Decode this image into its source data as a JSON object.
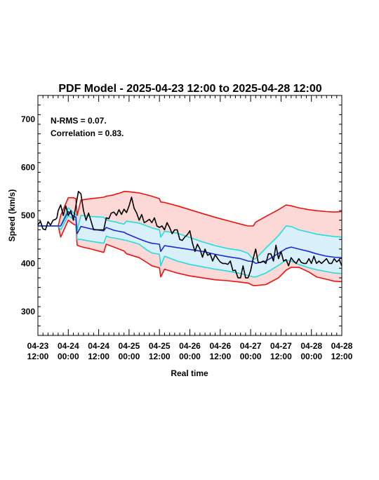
{
  "chart_data": {
    "type": "area",
    "title": "PDF Model - 2025-04-23 12:00 to 2025-04-28 12:00",
    "xlabel": "Real time",
    "ylabel": "Speed (km/s)",
    "ylim": [
      250,
      750
    ],
    "xlim_hours": [
      0,
      120
    ],
    "x_ticks": [
      {
        "h": 0,
        "date": "04-23",
        "time": "12:00"
      },
      {
        "h": 12,
        "date": "04-24",
        "time": "00:00"
      },
      {
        "h": 24,
        "date": "04-24",
        "time": "12:00"
      },
      {
        "h": 36,
        "date": "04-25",
        "time": "00:00"
      },
      {
        "h": 48,
        "date": "04-25",
        "time": "12:00"
      },
      {
        "h": 60,
        "date": "04-26",
        "time": "00:00"
      },
      {
        "h": 72,
        "date": "04-26",
        "time": "12:00"
      },
      {
        "h": 84,
        "date": "04-27",
        "time": "00:00"
      },
      {
        "h": 96,
        "date": "04-27",
        "time": "12:00"
      },
      {
        "h": 108,
        "date": "04-28",
        "time": "00:00"
      },
      {
        "h": 120,
        "date": "04-28",
        "time": "12:00"
      }
    ],
    "y_ticks": [
      300,
      400,
      500,
      600,
      700
    ],
    "annotations": [
      "N-RMS = 0.07.",
      "Correlation = 0.83."
    ],
    "colors": {
      "outer_band": "#fcd9d6",
      "inner_band": "#d9f0fa",
      "outer_line": "#ee1111",
      "inner_line": "#22dddd",
      "median": "#1a2bd6",
      "observed": "#000000"
    },
    "series": [
      {
        "key": "outer_upper",
        "x": [
          0,
          3,
          5,
          6.5,
          7.5,
          8,
          9,
          12,
          14,
          15,
          15.5,
          17,
          21,
          26,
          27,
          28,
          29,
          30,
          31,
          32,
          33,
          34,
          35,
          40,
          43,
          45,
          48,
          48.5,
          50,
          55,
          60,
          65,
          70,
          75,
          80,
          83,
          85,
          86,
          90,
          95,
          98,
          100,
          103,
          107,
          110,
          114,
          117,
          120
        ],
        "values": [
          478,
          478,
          478,
          478,
          478,
          478,
          500,
          537,
          537,
          535,
          500,
          532,
          535,
          538,
          540,
          541,
          542,
          543,
          545,
          546,
          548,
          550,
          550,
          547,
          543,
          540,
          535,
          528,
          527,
          520,
          512,
          504,
          496,
          489,
          482,
          478,
          478,
          486,
          498,
          512,
          522,
          520,
          516,
          512,
          510,
          508,
          507,
          508
        ]
      },
      {
        "key": "outer_lower",
        "x": [
          0,
          3,
          5,
          6.5,
          7.5,
          8,
          9,
          12,
          14,
          15,
          15.5,
          17,
          21,
          26,
          27,
          28,
          29,
          30,
          31,
          32,
          33,
          34,
          35,
          40,
          43,
          45,
          48,
          48.5,
          50,
          55,
          60,
          65,
          70,
          75,
          80,
          83,
          85,
          86,
          90,
          95,
          98,
          100,
          103,
          107,
          110,
          114,
          117,
          120
        ],
        "values": [
          478,
          478,
          478,
          478,
          478,
          478,
          455,
          490,
          482,
          480,
          438,
          435,
          430,
          423,
          440,
          438,
          436,
          434,
          432,
          430,
          428,
          426,
          420,
          412,
          402,
          395,
          391,
          372,
          388,
          380,
          374,
          370,
          366,
          364,
          361,
          359,
          354,
          354,
          356,
          370,
          386,
          392,
          392,
          382,
          372,
          367,
          363,
          362
        ]
      },
      {
        "key": "inner_upper",
        "x": [
          0,
          3,
          5,
          6.5,
          7.5,
          8,
          9,
          12,
          14,
          15,
          15.5,
          17,
          21,
          26,
          27,
          28,
          29,
          30,
          31,
          32,
          33,
          34,
          35,
          40,
          43,
          45,
          48,
          48.5,
          50,
          55,
          60,
          65,
          70,
          75,
          80,
          83,
          85,
          86,
          90,
          95,
          98,
          100,
          103,
          107,
          110,
          114,
          117,
          120
        ],
        "values": [
          478,
          478,
          478,
          478,
          478,
          478,
          478,
          516,
          506,
          502,
          470,
          500,
          498,
          496,
          491,
          489,
          488,
          487,
          486,
          484,
          483,
          482,
          488,
          484,
          478,
          474,
          470,
          455,
          467,
          463,
          454,
          445,
          437,
          431,
          427,
          421,
          408,
          410,
          432,
          458,
          478,
          477,
          470,
          465,
          461,
          458,
          456,
          455
        ]
      },
      {
        "key": "inner_lower",
        "x": [
          0,
          3,
          5,
          6.5,
          7.5,
          8,
          9,
          12,
          14,
          15,
          15.5,
          17,
          21,
          26,
          27,
          28,
          29,
          30,
          31,
          32,
          33,
          34,
          35,
          40,
          43,
          45,
          48,
          48.5,
          50,
          55,
          60,
          65,
          70,
          75,
          80,
          83,
          85,
          86,
          90,
          95,
          98,
          100,
          103,
          107,
          110,
          114,
          117,
          120
        ],
        "values": [
          478,
          478,
          478,
          478,
          478,
          478,
          470,
          500,
          492,
          490,
          450,
          450,
          446,
          442,
          457,
          455,
          454,
          453,
          452,
          451,
          450,
          449,
          448,
          440,
          428,
          422,
          419,
          395,
          415,
          405,
          398,
          393,
          388,
          384,
          379,
          375,
          372,
          372,
          380,
          396,
          407,
          405,
          398,
          391,
          387,
          383,
          380,
          379
        ]
      },
      {
        "key": "median",
        "x": [
          0,
          3,
          5,
          6.5,
          7.5,
          8,
          9,
          12,
          14,
          15,
          15.5,
          17,
          21,
          26,
          27,
          28,
          29,
          30,
          31,
          32,
          33,
          34,
          35,
          40,
          43,
          45,
          48,
          48.5,
          50,
          55,
          60,
          65,
          70,
          75,
          80,
          83,
          85,
          86,
          90,
          95,
          98,
          100,
          103,
          107,
          110,
          114,
          117,
          120
        ],
        "values": [
          478,
          478,
          478,
          478,
          478,
          478,
          478,
          508,
          499,
          496,
          462,
          477,
          472,
          468,
          475,
          473,
          471,
          469,
          468,
          467,
          466,
          465,
          462,
          451,
          445,
          442,
          440,
          425,
          437,
          433,
          429,
          425,
          419,
          414,
          410,
          405,
          404,
          400,
          405,
          421,
          431,
          434,
          430,
          425,
          420,
          415,
          413,
          412
        ]
      },
      {
        "key": "observed",
        "x": [
          0,
          1,
          2,
          3,
          4,
          5,
          6,
          7,
          7.5,
          8,
          9,
          10,
          11,
          12,
          13,
          14,
          15,
          16,
          17,
          18,
          19,
          20,
          21,
          22,
          26,
          27,
          28,
          29,
          30,
          31,
          32,
          33,
          34,
          35,
          36,
          37,
          38,
          39,
          40,
          41,
          42,
          43,
          44,
          45,
          46,
          47,
          48,
          49,
          50,
          51,
          52,
          53,
          54,
          55,
          56,
          57,
          58,
          59,
          60,
          61,
          62,
          63,
          64,
          65,
          66,
          67,
          68,
          69,
          70,
          71,
          72,
          73,
          74,
          75,
          76,
          77,
          78,
          79,
          80,
          81,
          82,
          83,
          84,
          85,
          86,
          87,
          88,
          89,
          90,
          91,
          92,
          93,
          94,
          95,
          96,
          97,
          98,
          99,
          100,
          101,
          102,
          103,
          104,
          105,
          106,
          107,
          108,
          109,
          110,
          111,
          112,
          113,
          114,
          115,
          116,
          117,
          118,
          119,
          120
        ],
        "values": [
          480,
          488,
          472,
          470,
          487,
          480,
          490,
          492,
          495,
          510,
          522,
          500,
          520,
          500,
          510,
          490,
          520,
          550,
          545,
          510,
          490,
          505,
          488,
          470,
          470,
          495,
          493,
          505,
          507,
          500,
          512,
          502,
          513,
          506,
          520,
          538,
          515,
          505,
          490,
          502,
          485,
          488,
          492,
          485,
          495,
          478,
          475,
          478,
          470,
          485,
          475,
          462,
          470,
          470,
          450,
          448,
          455,
          460,
          468,
          443,
          425,
          440,
          430,
          413,
          430,
          417,
          420,
          405,
          418,
          410,
          403,
          400,
          400,
          398,
          405,
          385,
          386,
          370,
          370,
          395,
          370,
          370,
          385,
          410,
          430,
          402,
          402,
          405,
          400,
          420,
          420,
          405,
          438,
          410,
          425,
          405,
          408,
          395,
          412,
          405,
          400,
          410,
          402,
          400,
          400,
          410,
          400,
          415,
          400,
          405,
          400,
          405,
          410,
          400,
          400,
          410,
          403,
          408,
          395
        ]
      }
    ]
  }
}
